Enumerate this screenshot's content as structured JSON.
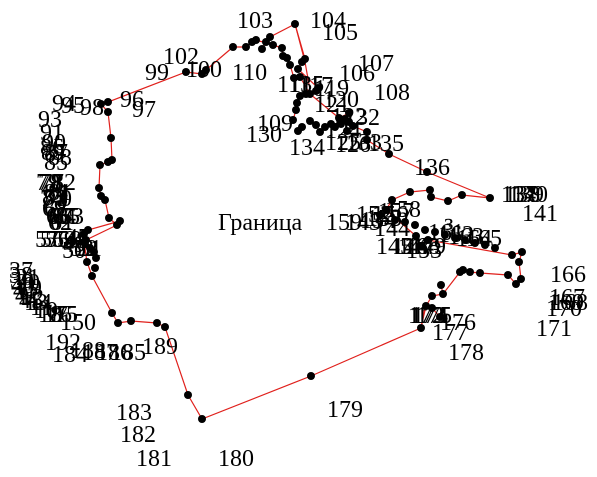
{
  "diagram": {
    "boundary_color": "#e0201c",
    "vertex_color": "#000000",
    "background": "#ffffff",
    "boundary_caption": "Граница",
    "caption_overlap_label": "159",
    "caption_tail": "з"
  },
  "vertex_labels": [
    "103",
    "104",
    "105",
    "107",
    "106",
    "108",
    "102",
    "100",
    "99",
    "110",
    "96",
    "97",
    "95",
    "94",
    "93",
    "98",
    "109",
    "130",
    "113",
    "115",
    "117",
    "119",
    "120",
    "122",
    "121",
    "132",
    "134",
    "124",
    "125",
    "126",
    "133",
    "135",
    "136",
    "91",
    "90",
    "89",
    "86",
    "87",
    "88",
    "85",
    "79",
    "78",
    "77",
    "82",
    "81",
    "84",
    "83",
    "74",
    "73",
    "70",
    "69",
    "68",
    "66",
    "67",
    "64",
    "65",
    "63",
    "62",
    "61",
    "57",
    "56",
    "55",
    "59",
    "60",
    "50",
    "49",
    "48",
    "47",
    "53",
    "52",
    "51",
    "37",
    "38",
    "39",
    "40",
    "41",
    "42",
    "45",
    "21",
    "20",
    "19",
    "12",
    "13",
    "14",
    "11",
    "10",
    "18",
    "17",
    "16",
    "15",
    "150",
    "192",
    "188",
    "187",
    "186",
    "185",
    "184",
    "189",
    "183",
    "182",
    "181",
    "180",
    "179",
    "137",
    "138",
    "139",
    "140",
    "141",
    "145",
    "146",
    "147",
    "148",
    "149",
    "152",
    "153",
    "143",
    "144",
    "154",
    "155",
    "156",
    "157",
    "158",
    "161",
    "162",
    "163",
    "164",
    "165",
    "166",
    "167",
    "168",
    "169",
    "170",
    "171",
    "172",
    "173",
    "174",
    "175",
    "176",
    "177",
    "178"
  ]
}
